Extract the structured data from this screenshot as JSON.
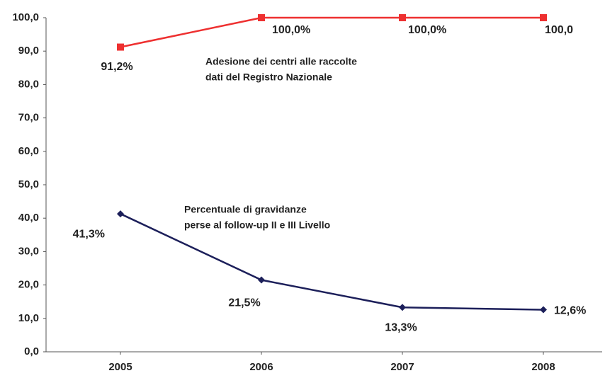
{
  "chart_data": {
    "type": "line",
    "categories": [
      "2005",
      "2006",
      "2007",
      "2008"
    ],
    "series": [
      {
        "color": "#ee3030",
        "marker": "square",
        "values": [
          91.2,
          100,
          100,
          100
        ],
        "value_labels": [
          "91,2%",
          "100,0%",
          "100,0%",
          "100,0"
        ]
      },
      {
        "color": "#1c1f5a",
        "marker": "diamond",
        "values": [
          41.3,
          21.5,
          13.3,
          12.6
        ],
        "value_labels": [
          "41,3%",
          "21,5%",
          "13,3%",
          "12,6%"
        ]
      }
    ],
    "annotations": [
      [
        "Adesione dei centri alle raccolte",
        "dati del Registro Nazionale"
      ],
      [
        "Percentuale di gravidanze",
        "perse al follow-up II e III Livello"
      ]
    ],
    "ylim": [
      0,
      100
    ],
    "yticks": [
      {
        "value": 0,
        "label": "0,0"
      },
      {
        "value": 10,
        "label": "10,0"
      },
      {
        "value": 20,
        "label": "20,0"
      },
      {
        "value": 30,
        "label": "30,0"
      },
      {
        "value": 40,
        "label": "40,0"
      },
      {
        "value": 50,
        "label": "50,0"
      },
      {
        "value": 60,
        "label": "60,0"
      },
      {
        "value": 70,
        "label": "70,0"
      },
      {
        "value": 80,
        "label": "80,0"
      },
      {
        "value": 90,
        "label": "90,0"
      },
      {
        "value": 100,
        "label": "100,0"
      }
    ],
    "grid": false
  }
}
